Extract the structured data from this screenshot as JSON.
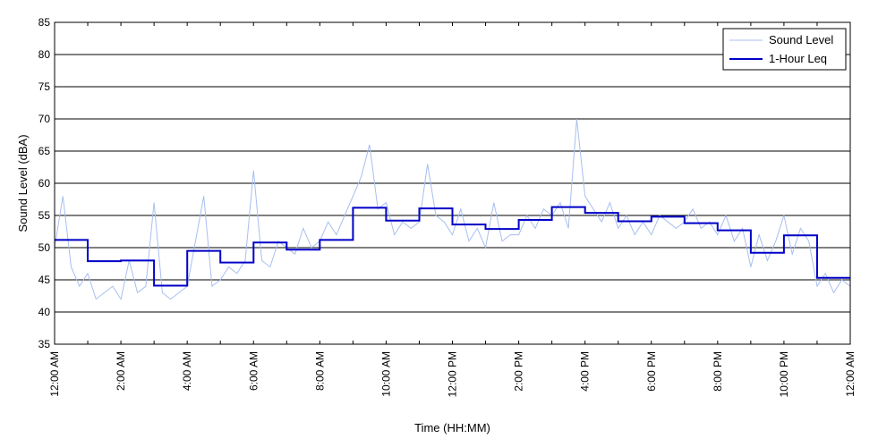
{
  "chart_data": {
    "type": "line",
    "title": "",
    "xlabel": "Time (HH:MM)",
    "ylabel": "Sound Level (dBA)",
    "xlim": [
      0,
      24
    ],
    "ylim": [
      35,
      85
    ],
    "y_ticks": [
      35,
      40,
      45,
      50,
      55,
      60,
      65,
      70,
      75,
      80,
      85
    ],
    "x_ticks": [
      {
        "hour": 0,
        "label": "12:00 AM"
      },
      {
        "hour": 1,
        "label": ""
      },
      {
        "hour": 2,
        "label": "2:00 AM"
      },
      {
        "hour": 3,
        "label": ""
      },
      {
        "hour": 4,
        "label": "4:00 AM"
      },
      {
        "hour": 5,
        "label": ""
      },
      {
        "hour": 6,
        "label": "6:00 AM"
      },
      {
        "hour": 7,
        "label": ""
      },
      {
        "hour": 8,
        "label": "8:00 AM"
      },
      {
        "hour": 9,
        "label": ""
      },
      {
        "hour": 10,
        "label": "10:00 AM"
      },
      {
        "hour": 11,
        "label": ""
      },
      {
        "hour": 12,
        "label": "12:00 PM"
      },
      {
        "hour": 13,
        "label": ""
      },
      {
        "hour": 14,
        "label": "2:00 PM"
      },
      {
        "hour": 15,
        "label": ""
      },
      {
        "hour": 16,
        "label": "4:00 PM"
      },
      {
        "hour": 17,
        "label": ""
      },
      {
        "hour": 18,
        "label": "6:00 PM"
      },
      {
        "hour": 19,
        "label": ""
      },
      {
        "hour": 20,
        "label": "8:00 PM"
      },
      {
        "hour": 21,
        "label": ""
      },
      {
        "hour": 22,
        "label": "10:00 PM"
      },
      {
        "hour": 23,
        "label": ""
      },
      {
        "hour": 24,
        "label": "12:00 AM"
      }
    ],
    "grid": {
      "horizontal": true,
      "vertical": false
    },
    "legend_position": "top-right",
    "series": [
      {
        "name": "Sound Level",
        "style": "thin-line",
        "color": "#a8bff0",
        "x": [
          0.0,
          0.25,
          0.5,
          0.75,
          1.0,
          1.25,
          1.5,
          1.75,
          2.0,
          2.25,
          2.5,
          2.75,
          3.0,
          3.25,
          3.5,
          3.75,
          4.0,
          4.25,
          4.5,
          4.75,
          5.0,
          5.25,
          5.5,
          5.75,
          6.0,
          6.25,
          6.5,
          6.75,
          7.0,
          7.25,
          7.5,
          7.75,
          8.0,
          8.25,
          8.5,
          8.75,
          9.0,
          9.25,
          9.5,
          9.75,
          10.0,
          10.25,
          10.5,
          10.75,
          11.0,
          11.25,
          11.5,
          11.75,
          12.0,
          12.25,
          12.5,
          12.75,
          13.0,
          13.25,
          13.5,
          13.75,
          14.0,
          14.25,
          14.5,
          14.75,
          15.0,
          15.25,
          15.5,
          15.75,
          16.0,
          16.25,
          16.5,
          16.75,
          17.0,
          17.25,
          17.5,
          17.75,
          18.0,
          18.25,
          18.5,
          18.75,
          19.0,
          19.25,
          19.5,
          19.75,
          20.0,
          20.25,
          20.5,
          20.75,
          21.0,
          21.25,
          21.5,
          21.75,
          22.0,
          22.25,
          22.5,
          22.75,
          23.0,
          23.25,
          23.5,
          23.75,
          24.0
        ],
        "y": [
          50,
          58,
          47,
          44,
          46,
          42,
          43,
          44,
          42,
          48,
          43,
          44,
          57,
          43,
          42,
          43,
          44,
          51,
          58,
          44,
          45,
          47,
          46,
          48,
          62,
          48,
          47,
          51,
          50,
          49,
          53,
          50,
          51,
          54,
          52,
          55,
          58,
          61,
          66,
          56,
          57,
          52,
          54,
          53,
          54,
          63,
          55,
          54,
          52,
          56,
          51,
          53,
          50,
          57,
          51,
          52,
          52,
          55,
          53,
          56,
          55,
          57,
          53,
          70,
          58,
          56,
          54,
          57,
          53,
          55,
          52,
          54,
          52,
          55,
          54,
          53,
          54,
          56,
          53,
          54,
          52,
          55,
          51,
          53,
          47,
          52,
          48,
          51,
          55,
          49,
          53,
          51,
          44,
          46,
          43,
          45,
          44
        ]
      },
      {
        "name": "1-Hour Leq",
        "style": "step",
        "color": "#0000c8",
        "x": [
          0,
          1,
          2,
          3,
          4,
          5,
          6,
          7,
          8,
          9,
          10,
          11,
          12,
          13,
          14,
          15,
          16,
          17,
          18,
          19,
          20,
          21,
          22,
          23,
          24
        ],
        "y": [
          51.2,
          47.9,
          48.0,
          44.1,
          49.5,
          47.7,
          50.8,
          49.7,
          51.2,
          56.2,
          54.2,
          56.1,
          53.6,
          52.9,
          54.3,
          56.3,
          55.4,
          54.1,
          54.8,
          53.8,
          52.7,
          49.2,
          51.9,
          45.3,
          45.3
        ]
      }
    ]
  }
}
